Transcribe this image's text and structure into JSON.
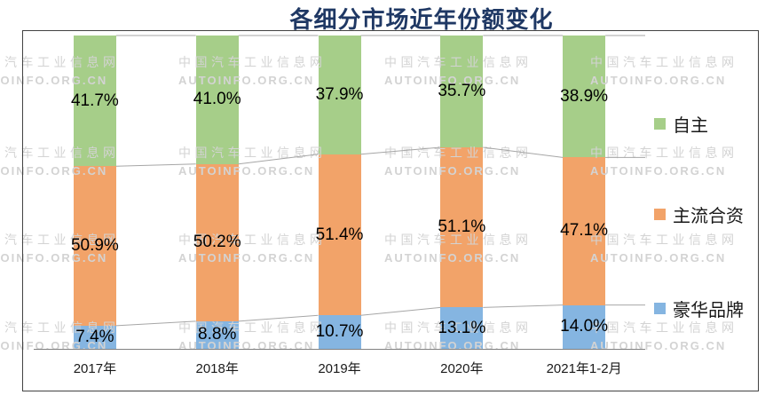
{
  "title": "各细分市场近年份额变化",
  "watermark": {
    "line1": "中国汽车工业信息网",
    "line2": "AUTOINFO.ORG.CN"
  },
  "chart_data": {
    "type": "bar",
    "subtype": "stacked-100-percent-column",
    "title": "各细分市场近年份额变化",
    "categories": [
      "2017年",
      "2018年",
      "2019年",
      "2020年",
      "2021年1-2月"
    ],
    "series": [
      {
        "name": "自主",
        "color": "#A6CE89",
        "values": [
          41.7,
          41.0,
          37.9,
          35.7,
          38.9
        ]
      },
      {
        "name": "主流合资",
        "color": "#F2A369",
        "values": [
          50.9,
          50.2,
          51.4,
          51.1,
          47.1
        ]
      },
      {
        "name": "豪华品牌",
        "color": "#85B5E1",
        "values": [
          7.4,
          8.8,
          10.7,
          13.1,
          14.0
        ]
      }
    ],
    "data_labels": [
      [
        "41.7%",
        "41.0%",
        "37.9%",
        "35.7%",
        "38.9%"
      ],
      [
        "50.9%",
        "50.2%",
        "51.4%",
        "51.1%",
        "47.1%"
      ],
      [
        "7.4%",
        "8.8%",
        "10.7%",
        "13.1%",
        "14.0%"
      ]
    ],
    "ylim": [
      0,
      100
    ],
    "grid": false,
    "series_lines": true,
    "legend_position": "right",
    "legend": [
      "自主",
      "主流合资",
      "豪华品牌"
    ]
  },
  "colors": {
    "title": "#1F3864",
    "axis_line": "#808080",
    "connector_line": "#A6A6A6",
    "border": "#424242",
    "watermark": "#D3D3D3",
    "label_text": "#000000"
  }
}
